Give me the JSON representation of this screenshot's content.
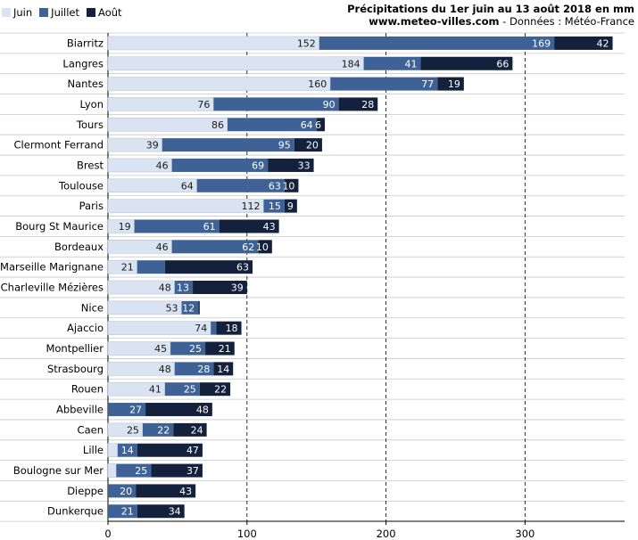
{
  "header": {
    "title": "Précipitations du 1er juin au 13 août 2018 en mm",
    "site": "www.meteo-villes.com",
    "source": " - Données : Météo-France"
  },
  "colors": {
    "juin": "#dae3f1",
    "juillet": "#3e6295",
    "aout": "#14213d"
  },
  "chart_data": {
    "type": "bar",
    "orientation": "horizontal",
    "stacked": true,
    "categories": [
      "Biarritz",
      "Langres",
      "Nantes",
      "Lyon",
      "Tours",
      "Clermont Ferrand",
      "Brest",
      "Toulouse",
      "Paris",
      "Bourg St Maurice",
      "Bordeaux",
      "Marseille Marignane",
      "Charleville Mézières",
      "Nice",
      "Ajaccio",
      "Montpellier",
      "Strasbourg",
      "Rouen",
      "Abbeville",
      "Caen",
      "Lille",
      "Boulogne sur Mer",
      "Dieppe",
      "Dunkerque"
    ],
    "series": [
      {
        "name": "Juin",
        "values": [
          152,
          184,
          160,
          76,
          86,
          39,
          46,
          64,
          112,
          19,
          46,
          21,
          48,
          53,
          74,
          45,
          48,
          41,
          0,
          25,
          7,
          6,
          0,
          0
        ]
      },
      {
        "name": "Juillet",
        "values": [
          169,
          41,
          77,
          90,
          64,
          95,
          69,
          63,
          15,
          61,
          62,
          20,
          13,
          12,
          4,
          25,
          28,
          25,
          27,
          22,
          14,
          25,
          20,
          21
        ]
      },
      {
        "name": "Août",
        "values": [
          42,
          66,
          19,
          28,
          6,
          20,
          33,
          10,
          9,
          43,
          10,
          63,
          39,
          1,
          18,
          21,
          14,
          22,
          48,
          24,
          47,
          37,
          43,
          34
        ]
      }
    ],
    "labels": [
      [
        "152",
        "169",
        "42"
      ],
      [
        "184",
        "41",
        "66"
      ],
      [
        "160",
        "77",
        "19"
      ],
      [
        "76",
        "90",
        "28"
      ],
      [
        "86",
        "64",
        "6"
      ],
      [
        "39",
        "95",
        "20"
      ],
      [
        "46",
        "69",
        "33"
      ],
      [
        "64",
        "63",
        "10"
      ],
      [
        "112",
        "15",
        "9"
      ],
      [
        "19",
        "61",
        "43"
      ],
      [
        "46",
        "62",
        "10"
      ],
      [
        "21",
        "",
        "63"
      ],
      [
        "48",
        "13",
        "39"
      ],
      [
        "53",
        "12",
        "",
        ""
      ],
      [
        "74",
        "",
        "18"
      ],
      [
        "45",
        "25",
        "21"
      ],
      [
        "48",
        "28",
        "14"
      ],
      [
        "41",
        "25",
        "22"
      ],
      [
        "",
        "27",
        "48"
      ],
      [
        "25",
        "22",
        "24"
      ],
      [
        "",
        "14",
        "47"
      ],
      [
        "",
        "25",
        "37"
      ],
      [
        "",
        "20",
        "43"
      ],
      [
        "",
        "21",
        "34"
      ]
    ],
    "xlim": [
      0,
      370
    ],
    "xticks": [
      0,
      100,
      200,
      300
    ],
    "grid": true,
    "legend_position": "top-left"
  }
}
